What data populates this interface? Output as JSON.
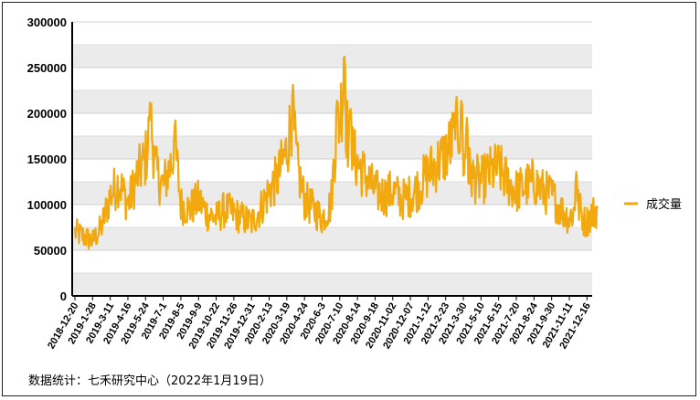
{
  "chart_data": {
    "type": "line",
    "title": "",
    "xlabel": "",
    "ylabel": "",
    "ylim": [
      0,
      300000
    ],
    "yticks": [
      0,
      50000,
      100000,
      150000,
      200000,
      250000,
      300000
    ],
    "yticks_labels": [
      "0",
      "50000",
      "100000",
      "150000",
      "200000",
      "250000",
      "300000"
    ],
    "grid": "horizontal bands",
    "legend_position": "right",
    "series_color": "#F2A90F",
    "band_color": "#EBEBEB",
    "x_tick_labels": [
      "2018-12-20",
      "2019-1-28",
      "2019-3-11",
      "2019-4-16",
      "2019-5-24",
      "2019-7-1",
      "2019-8-5",
      "2019-9-9",
      "2019-10-22",
      "2019-11-26",
      "2019-12-31",
      "2020-2-13",
      "2020-3-19",
      "2020-4-24",
      "2020-6-3",
      "2020-7-10",
      "2020-8-14",
      "2020-9-18",
      "2020-11-02",
      "2020-12-07",
      "2021-1-12",
      "2021-2-23",
      "2021-3-30",
      "2021-5-10",
      "2021-6-15",
      "2021-7-20",
      "2021-8-24",
      "2021-9-30",
      "2021-11-11",
      "2021-12-16"
    ],
    "series": [
      {
        "name": "成交量",
        "anchors": [
          [
            0,
            70000
          ],
          [
            1,
            60000
          ],
          [
            1.5,
            75000
          ],
          [
            2,
            110000
          ],
          [
            2.5,
            125000
          ],
          [
            3,
            100000
          ],
          [
            3.5,
            130000
          ],
          [
            4,
            150000
          ],
          [
            4.3,
            190000
          ],
          [
            4.6,
            135000
          ],
          [
            5,
            120000
          ],
          [
            5.7,
            160000
          ],
          [
            6,
            100000
          ],
          [
            6.5,
            95000
          ],
          [
            7,
            105000
          ],
          [
            7.5,
            90000
          ],
          [
            8,
            85000
          ],
          [
            8.5,
            95000
          ],
          [
            9,
            90000
          ],
          [
            9.5,
            85000
          ],
          [
            10,
            80000
          ],
          [
            10.5,
            95000
          ],
          [
            11,
            115000
          ],
          [
            11.5,
            130000
          ],
          [
            12,
            160000
          ],
          [
            12.3,
            200000
          ],
          [
            12.6,
            140000
          ],
          [
            13,
            105000
          ],
          [
            13.5,
            95000
          ],
          [
            14,
            85000
          ],
          [
            14.5,
            100000
          ],
          [
            14.8,
            180000
          ],
          [
            15,
            195000
          ],
          [
            15.2,
            230000
          ],
          [
            15.5,
            165000
          ],
          [
            16,
            145000
          ],
          [
            16.5,
            130000
          ],
          [
            17,
            115000
          ],
          [
            17.5,
            110000
          ],
          [
            18,
            115000
          ],
          [
            18.5,
            105000
          ],
          [
            19,
            110000
          ],
          [
            19.5,
            120000
          ],
          [
            20,
            135000
          ],
          [
            20.5,
            145000
          ],
          [
            21,
            155000
          ],
          [
            21.5,
            175000
          ],
          [
            21.8,
            185000
          ],
          [
            22,
            150000
          ],
          [
            22.5,
            130000
          ],
          [
            23,
            125000
          ],
          [
            23.5,
            135000
          ],
          [
            24,
            140000
          ],
          [
            24.5,
            125000
          ],
          [
            25,
            115000
          ],
          [
            25.5,
            120000
          ],
          [
            26,
            125000
          ],
          [
            26.5,
            115000
          ],
          [
            27,
            110000
          ],
          [
            27.5,
            95000
          ],
          [
            28,
            85000
          ],
          [
            28.5,
            100000
          ],
          [
            28.9,
            80000
          ],
          [
            29.3,
            90000
          ],
          [
            29.6,
            95000
          ]
        ]
      }
    ]
  },
  "source_note": "数据统计：七禾研究中心（2022年1月19日）"
}
